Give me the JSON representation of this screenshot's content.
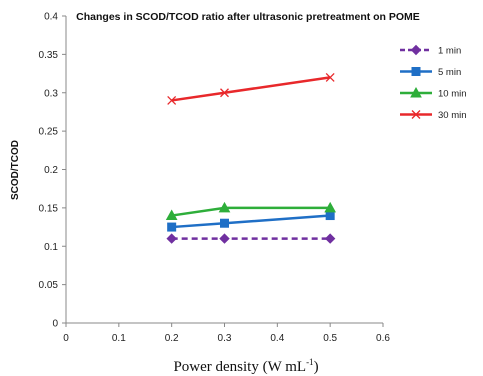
{
  "chart_data": {
    "type": "line",
    "title": "Changes in SCOD/TCOD ratio after ultrasonic pretreatment on POME",
    "xlabel": "Power density (W mL",
    "xlabel_sup": "-1",
    "xlabel_close": ")",
    "ylabel": "SCOD/TCOD",
    "xlim": [
      0,
      0.6
    ],
    "ylim": [
      0,
      0.4
    ],
    "x_ticks": [
      "0",
      "0.1",
      "0.2",
      "0.3",
      "0.4",
      "0.5",
      "0.6"
    ],
    "y_ticks": [
      "0",
      "0.05",
      "0.1",
      "0.15",
      "0.2",
      "0.25",
      "0.3",
      "0.35",
      "0.4"
    ],
    "grid": false,
    "legend_position": "right",
    "x": [
      0.2,
      0.3,
      0.5
    ],
    "series": [
      {
        "name": "1 min",
        "values": [
          0.11,
          0.11,
          0.11
        ],
        "color": "#7030A0",
        "marker": "diamond",
        "dashed": true
      },
      {
        "name": "5 min",
        "values": [
          0.125,
          0.13,
          0.14
        ],
        "color": "#1F6FC6",
        "marker": "square",
        "dashed": false
      },
      {
        "name": "10 min",
        "values": [
          0.14,
          0.15,
          0.15
        ],
        "color": "#2EAE3A",
        "marker": "triangle",
        "dashed": false
      },
      {
        "name": "30 min",
        "values": [
          0.29,
          0.3,
          0.32
        ],
        "color": "#E8282B",
        "marker": "x",
        "dashed": false
      }
    ]
  }
}
